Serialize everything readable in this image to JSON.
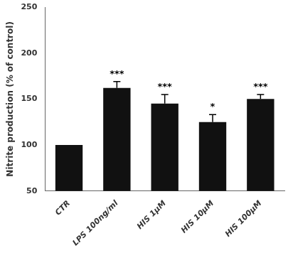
{
  "chart_data": {
    "type": "bar",
    "ylabel": "Nitrite production (% of control)",
    "categories": [
      "CTR",
      "LPS 100ng/ml",
      "HIS 1μM",
      "HIS 10μM",
      "HIS 100μM"
    ],
    "values": [
      100,
      162,
      145,
      125,
      150
    ],
    "errors": [
      0,
      7,
      10,
      8,
      5
    ],
    "significance": [
      null,
      "***",
      "***",
      "*",
      "***"
    ],
    "color": "#111111",
    "ylim": [
      50,
      250
    ],
    "yticks": [
      50,
      100,
      150,
      200,
      250
    ],
    "grid": false
  }
}
